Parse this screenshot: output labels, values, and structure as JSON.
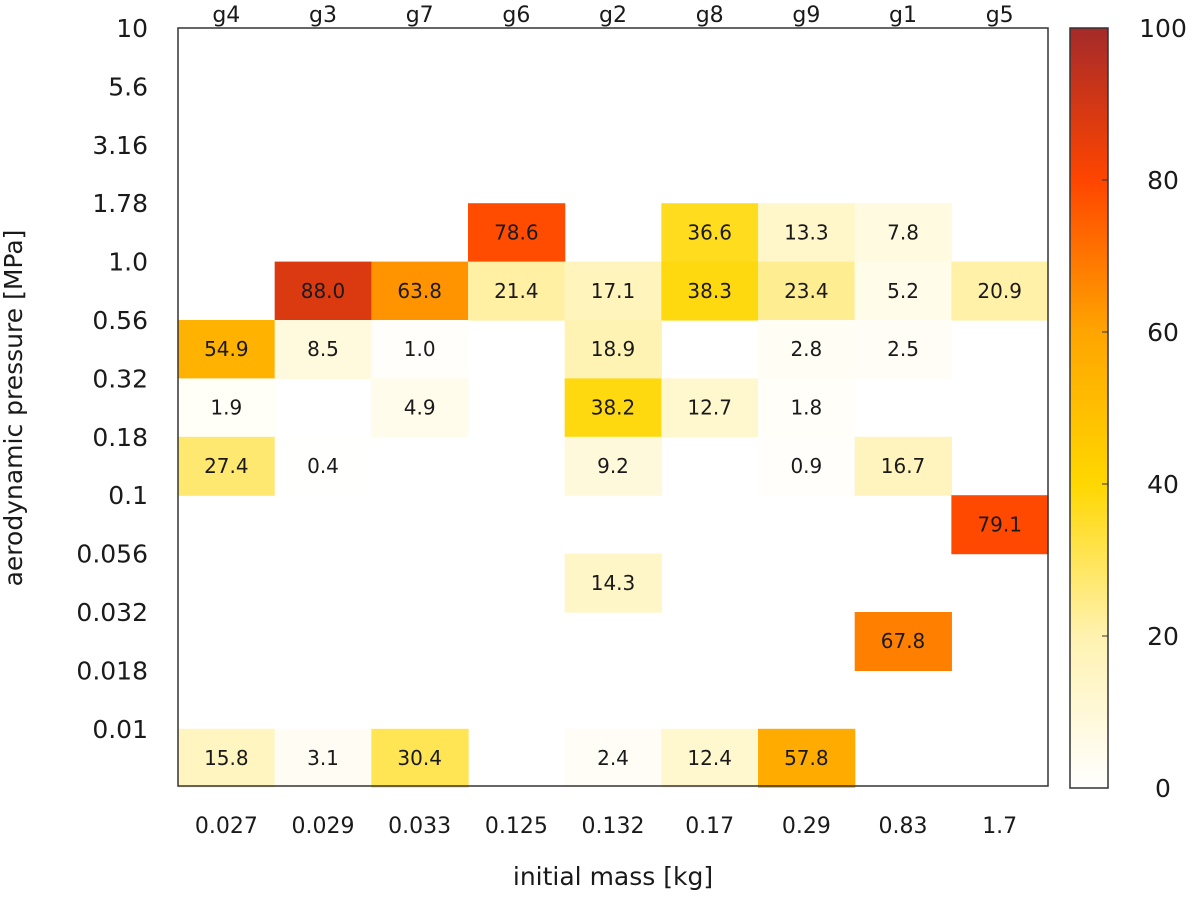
{
  "chart_data": {
    "type": "heatmap",
    "xlabel": "initial mass [kg]",
    "ylabel": "aerodynamic pressure [MPa]",
    "x_categories": [
      "0.027",
      "0.029",
      "0.033",
      "0.125",
      "0.132",
      "0.17",
      "0.29",
      "0.83",
      "1.7"
    ],
    "x_top_categories": [
      "g4",
      "g3",
      "g7",
      "g6",
      "g2",
      "g8",
      "g9",
      "g1",
      "g5"
    ],
    "y_tick_labels": [
      "10",
      "5.6",
      "3.16",
      "1.78",
      "1.0",
      "0.56",
      "0.32",
      "0.18",
      "0.1",
      "0.056",
      "0.032",
      "0.018",
      "0.01"
    ],
    "colorbar": {
      "range": [
        0,
        100
      ],
      "ticks": [
        "0",
        "20",
        "40",
        "60",
        "80",
        "100"
      ],
      "colors": [
        "#ffffff",
        "#fff2b0",
        "#ffd700",
        "#ffa500",
        "#ff4500",
        "#a52a2a"
      ]
    },
    "grid": false,
    "cells": [
      {
        "x": 3,
        "y": 3,
        "value": 78.6,
        "label": "78.6"
      },
      {
        "x": 5,
        "y": 3,
        "value": 36.6,
        "label": "36.6"
      },
      {
        "x": 6,
        "y": 3,
        "value": 13.3,
        "label": "13.3"
      },
      {
        "x": 7,
        "y": 3,
        "value": 7.8,
        "label": "7.8"
      },
      {
        "x": 1,
        "y": 4,
        "value": 88.0,
        "label": "88.0"
      },
      {
        "x": 2,
        "y": 4,
        "value": 63.8,
        "label": "63.8"
      },
      {
        "x": 3,
        "y": 4,
        "value": 21.4,
        "label": "21.4"
      },
      {
        "x": 4,
        "y": 4,
        "value": 17.1,
        "label": "17.1"
      },
      {
        "x": 5,
        "y": 4,
        "value": 38.3,
        "label": "38.3"
      },
      {
        "x": 6,
        "y": 4,
        "value": 23.4,
        "label": "23.4"
      },
      {
        "x": 7,
        "y": 4,
        "value": 5.2,
        "label": "5.2"
      },
      {
        "x": 8,
        "y": 4,
        "value": 20.9,
        "label": "20.9"
      },
      {
        "x": 0,
        "y": 5,
        "value": 54.9,
        "label": "54.9"
      },
      {
        "x": 1,
        "y": 5,
        "value": 8.5,
        "label": "8.5"
      },
      {
        "x": 2,
        "y": 5,
        "value": 1.0,
        "label": "1.0"
      },
      {
        "x": 4,
        "y": 5,
        "value": 18.9,
        "label": "18.9"
      },
      {
        "x": 6,
        "y": 5,
        "value": 2.8,
        "label": "2.8"
      },
      {
        "x": 7,
        "y": 5,
        "value": 2.5,
        "label": "2.5"
      },
      {
        "x": 0,
        "y": 6,
        "value": 1.9,
        "label": "1.9"
      },
      {
        "x": 2,
        "y": 6,
        "value": 4.9,
        "label": "4.9"
      },
      {
        "x": 4,
        "y": 6,
        "value": 38.2,
        "label": "38.2"
      },
      {
        "x": 5,
        "y": 6,
        "value": 12.7,
        "label": "12.7"
      },
      {
        "x": 6,
        "y": 6,
        "value": 1.8,
        "label": "1.8"
      },
      {
        "x": 0,
        "y": 7,
        "value": 27.4,
        "label": "27.4"
      },
      {
        "x": 1,
        "y": 7,
        "value": 0.4,
        "label": "0.4"
      },
      {
        "x": 4,
        "y": 7,
        "value": 9.2,
        "label": "9.2"
      },
      {
        "x": 6,
        "y": 7,
        "value": 0.9,
        "label": "0.9"
      },
      {
        "x": 7,
        "y": 7,
        "value": 16.7,
        "label": "16.7"
      },
      {
        "x": 8,
        "y": 8,
        "value": 79.1,
        "label": "79.1"
      },
      {
        "x": 4,
        "y": 9,
        "value": 14.3,
        "label": "14.3"
      },
      {
        "x": 7,
        "y": 10,
        "value": 67.8,
        "label": "67.8"
      },
      {
        "x": 0,
        "y": 12,
        "value": 15.8,
        "label": "15.8"
      },
      {
        "x": 1,
        "y": 12,
        "value": 3.1,
        "label": "3.1"
      },
      {
        "x": 2,
        "y": 12,
        "value": 30.4,
        "label": "30.4"
      },
      {
        "x": 4,
        "y": 12,
        "value": 2.4,
        "label": "2.4"
      },
      {
        "x": 5,
        "y": 12,
        "value": 12.4,
        "label": "12.4"
      },
      {
        "x": 6,
        "y": 12,
        "value": 57.8,
        "label": "57.8"
      }
    ]
  }
}
